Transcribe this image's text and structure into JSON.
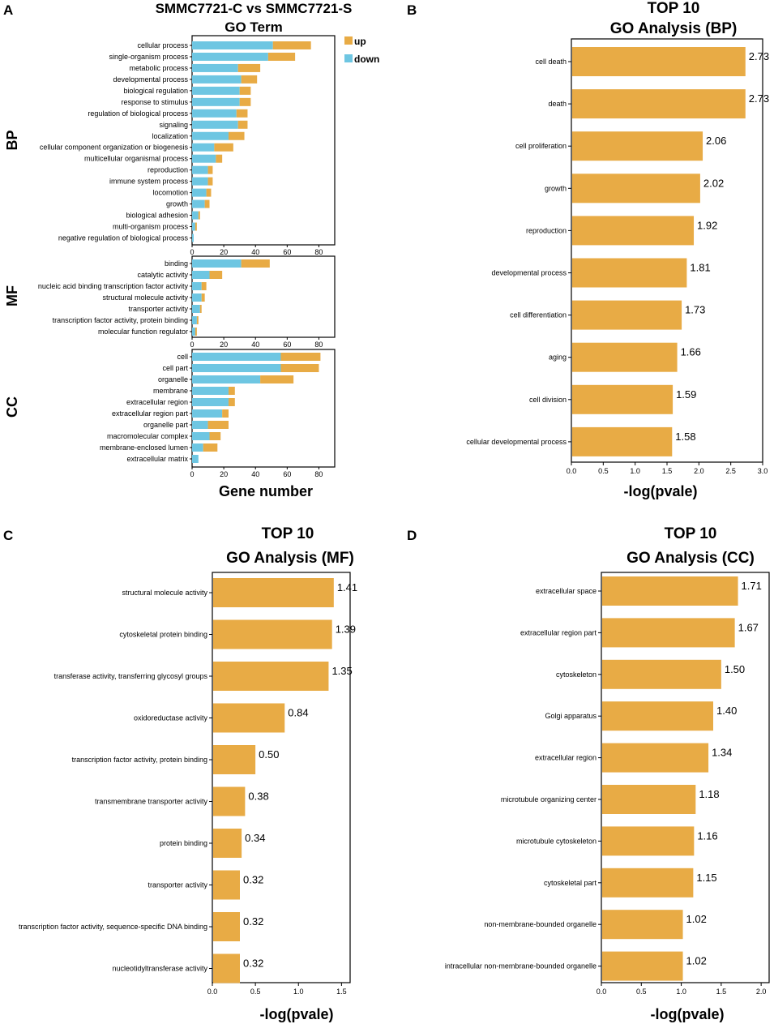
{
  "panels": {
    "a": {
      "label": "A",
      "title_line1": "SMMC7721-C vs SMMC7721-S",
      "title_line2": "GO Term",
      "legend": {
        "up": "up",
        "down": "down"
      },
      "xlabel": "Gene number"
    },
    "b": {
      "label": "B",
      "title_line1": "TOP 10",
      "title_line2": "GO Analysis (BP)",
      "xlabel": "-log(pvale)"
    },
    "c": {
      "label": "C",
      "title_line1": "TOP 10",
      "title_line2": "GO Analysis (MF)",
      "xlabel": "-log(pvale)"
    },
    "d": {
      "label": "D",
      "title_line1": "TOP 10",
      "title_line2": "GO Analysis (CC)",
      "xlabel": "-log(pvale)"
    }
  },
  "colors": {
    "up": "#e8ab45",
    "down": "#6ec6e2",
    "bar": "#e8ab45",
    "axis": "#000000"
  },
  "chart_data": [
    {
      "id": "A",
      "type": "bar",
      "orientation": "horizontal",
      "stacked": true,
      "title": "SMMC7721-C vs SMMC7721-S GO Term",
      "xlabel": "Gene number",
      "xlim": [
        0,
        90
      ],
      "xticks": [
        0,
        20,
        40,
        60,
        80
      ],
      "series_names": [
        "down",
        "up"
      ],
      "groups": [
        {
          "name": "BP",
          "categories": [
            "cellular process",
            "single-organism process",
            "metabolic process",
            "developmental process",
            "biological regulation",
            "response to stimulus",
            "regulation of biological process",
            "signaling",
            "localization",
            "cellular component organization or biogenesis",
            "multicellular organismal process",
            "reproduction",
            "immune system process",
            "locomotion",
            "growth",
            "biological adhesion",
            "multi-organism process",
            "negative regulation of biological process"
          ],
          "down": [
            51,
            48,
            29,
            31,
            30,
            30,
            28,
            29,
            23,
            14,
            15,
            10,
            10,
            9,
            8,
            4,
            2,
            1
          ],
          "up": [
            24,
            17,
            14,
            10,
            7,
            7,
            7,
            6,
            10,
            12,
            4,
            3,
            3,
            3,
            3,
            1,
            1,
            0
          ]
        },
        {
          "name": "MF",
          "categories": [
            "binding",
            "catalytic activity",
            "nucleic acid binding transcription factor activity",
            "structural molecule activity",
            "transporter activity",
            "transcription factor activity, protein binding",
            "molecular function regulator"
          ],
          "down": [
            31,
            11,
            6,
            6,
            5,
            3,
            2
          ],
          "up": [
            18,
            8,
            3,
            2,
            1,
            1,
            1
          ]
        },
        {
          "name": "CC",
          "categories": [
            "cell",
            "cell part",
            "organelle",
            "membrane",
            "extracellular region",
            "extracellular region part",
            "organelle part",
            "macromolecular complex",
            "membrane-enclosed lumen",
            "extracellular matrix"
          ],
          "down": [
            56,
            56,
            43,
            23,
            23,
            19,
            10,
            11,
            7,
            4
          ],
          "up": [
            25,
            24,
            21,
            4,
            4,
            4,
            13,
            7,
            9,
            0
          ]
        }
      ]
    },
    {
      "id": "B",
      "type": "bar",
      "orientation": "horizontal",
      "title": "TOP 10 GO Analysis (BP)",
      "xlabel": "-log(pvale)",
      "xlim": [
        0,
        3.0
      ],
      "xticks": [
        0.0,
        0.5,
        1.0,
        1.5,
        2.0,
        2.5,
        3.0
      ],
      "tick_decimals": 1,
      "categories": [
        "cell death",
        "death",
        "cell proliferation",
        "growth",
        "reproduction",
        "developmental process",
        "cell differentiation",
        "aging",
        "cell division",
        "cellular developmental process"
      ],
      "values": [
        2.73,
        2.73,
        2.06,
        2.02,
        1.92,
        1.81,
        1.73,
        1.66,
        1.59,
        1.58
      ]
    },
    {
      "id": "C",
      "type": "bar",
      "orientation": "horizontal",
      "title": "TOP 10 GO Analysis (MF)",
      "xlabel": "-log(pvale)",
      "xlim": [
        0,
        1.6
      ],
      "xticks": [
        0.0,
        0.5,
        1.0,
        1.5
      ],
      "tick_decimals": 1,
      "categories": [
        "structural molecule activity",
        "cytoskeletal protein binding",
        "transferase activity, transferring glycosyl groups",
        "oxidoreductase activity",
        "transcription factor activity, protein binding",
        "transmembrane transporter activity",
        "protein binding",
        "transporter activity",
        "transcription factor activity, sequence-specific DNA binding",
        "nucleotidyltransferase activity"
      ],
      "values": [
        1.41,
        1.39,
        1.35,
        0.84,
        0.5,
        0.38,
        0.34,
        0.32,
        0.32,
        0.32
      ]
    },
    {
      "id": "D",
      "type": "bar",
      "orientation": "horizontal",
      "title": "TOP 10 GO Analysis (CC)",
      "xlabel": "-log(pvale)",
      "xlim": [
        0,
        2.1
      ],
      "xticks": [
        0.0,
        0.5,
        1.0,
        1.5,
        2.0
      ],
      "tick_decimals": 1,
      "categories": [
        "extracellular space",
        "extracellular region part",
        "cytoskeleton",
        "Golgi apparatus",
        "extracellular region",
        "microtubule organizing center",
        "microtubule cytoskeleton",
        "cytoskeletal part",
        "non-membrane-bounded organelle",
        "intracellular non-membrane-bounded organelle"
      ],
      "values": [
        1.71,
        1.67,
        1.5,
        1.4,
        1.34,
        1.18,
        1.16,
        1.15,
        1.02,
        1.02
      ]
    }
  ]
}
